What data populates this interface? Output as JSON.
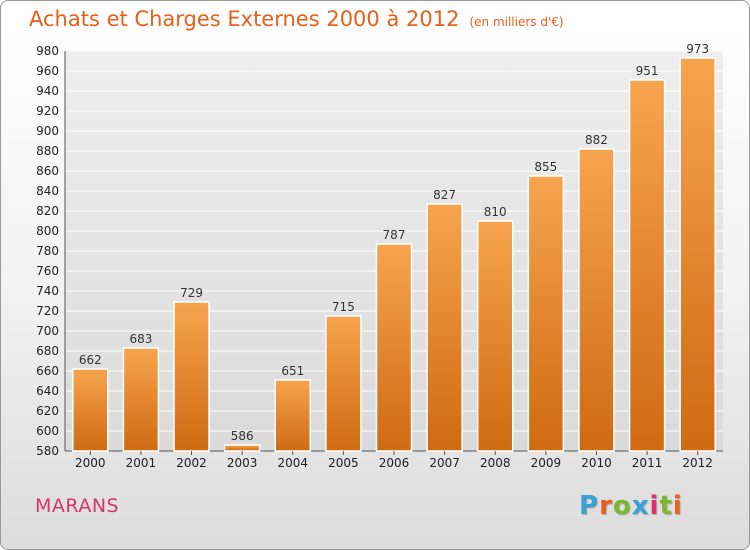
{
  "title": "Achats et Charges Externes 2000 à 2012",
  "subtitle": "(en milliers d'€)",
  "location": "MARANS",
  "logo": {
    "text": "Proxiti",
    "letters": [
      "P",
      "r",
      "o",
      "x",
      "i",
      "t",
      "i"
    ],
    "colors": [
      "#3aa0d8",
      "#e8601a",
      "#79b82c",
      "#3aa0d8",
      "#d9336b",
      "#79b82c",
      "#e8601a"
    ]
  },
  "colors": {
    "bar_top": "#f7a44e",
    "bar_bottom": "#cf6a12",
    "title": "#e8601a",
    "location": "#d9336b",
    "grid": "#ffffff"
  },
  "chart_data": {
    "type": "bar",
    "title": "Achats et Charges Externes 2000 à 2012",
    "subtitle": "(en milliers d'€)",
    "xlabel": "",
    "ylabel": "",
    "categories": [
      "2000",
      "2001",
      "2002",
      "2003",
      "2004",
      "2005",
      "2006",
      "2007",
      "2008",
      "2009",
      "2010",
      "2011",
      "2012"
    ],
    "values": [
      662,
      683,
      729,
      586,
      651,
      715,
      787,
      827,
      810,
      855,
      882,
      951,
      973
    ],
    "ylim": [
      580,
      980
    ],
    "yticks": [
      580,
      600,
      620,
      640,
      660,
      680,
      700,
      720,
      740,
      760,
      780,
      800,
      820,
      840,
      860,
      880,
      900,
      920,
      940,
      960,
      980
    ],
    "grid": true,
    "legend": "none"
  }
}
